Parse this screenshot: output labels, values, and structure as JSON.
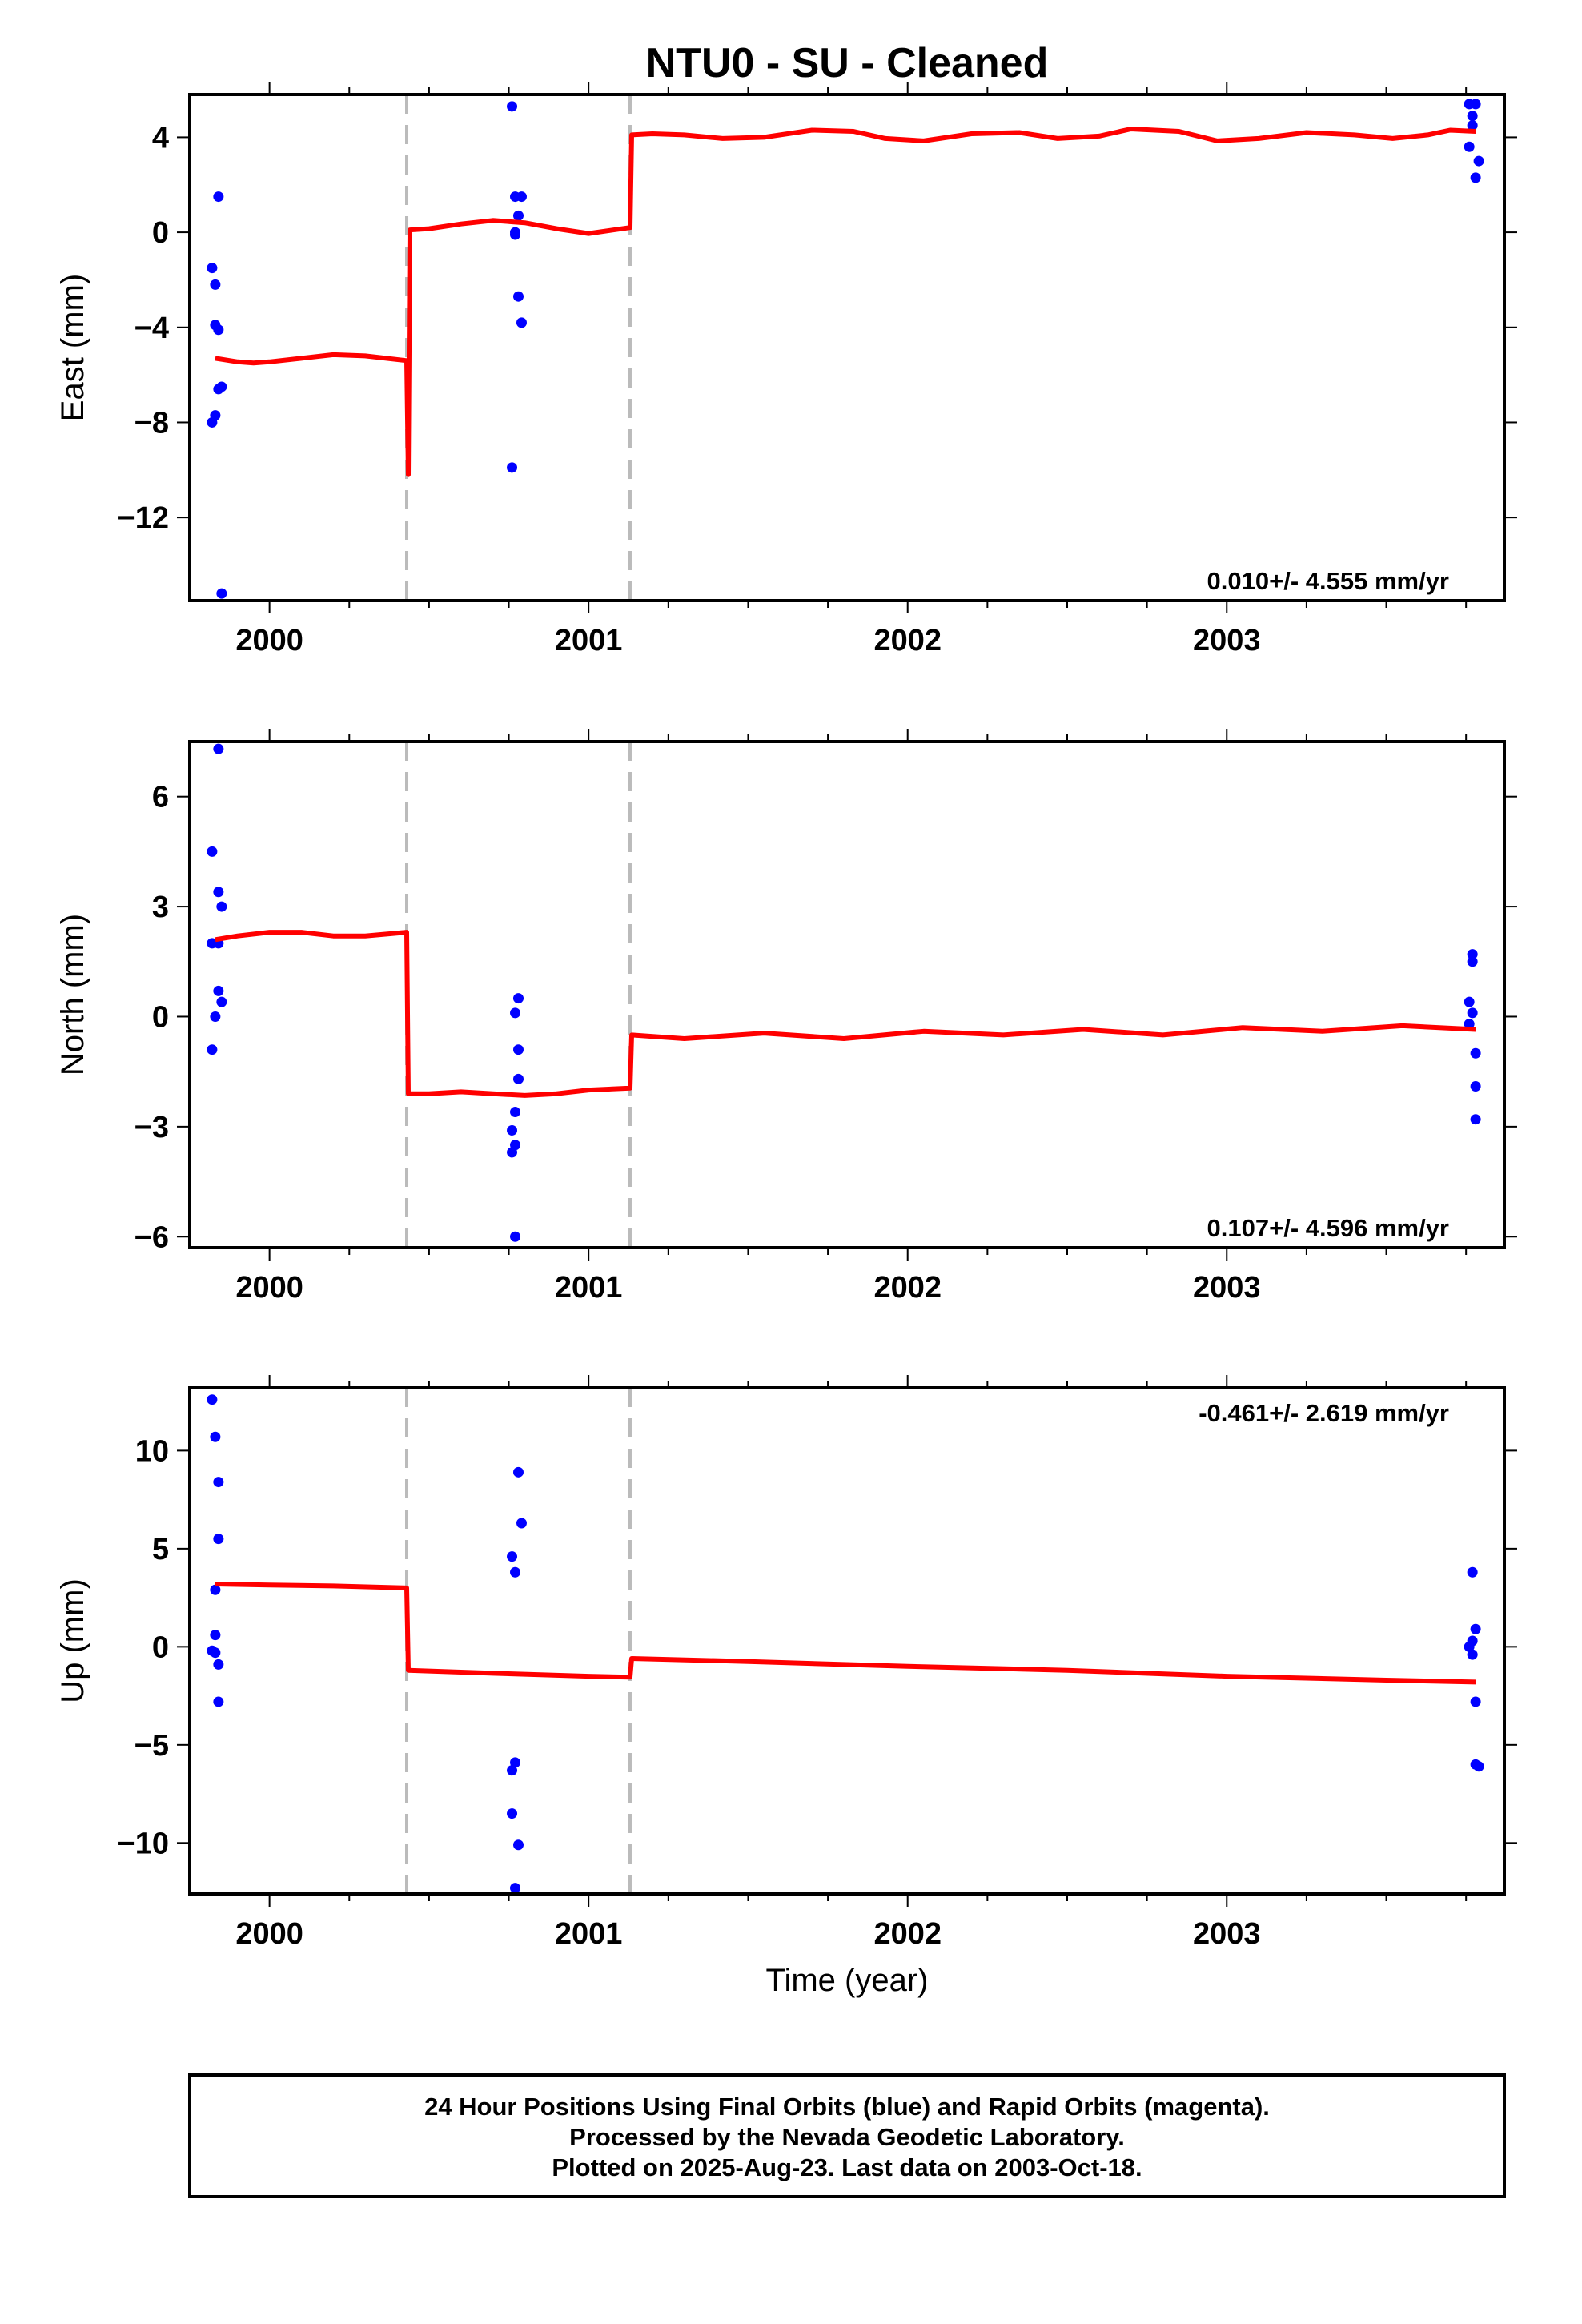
{
  "title": "NTU0  - SU - Cleaned",
  "xlabel": "Time (year)",
  "footer": {
    "lines": [
      "24 Hour Positions Using Final Orbits (blue) and Rapid Orbits (magenta).",
      "Processed by the Nevada Geodetic Laboratory.",
      "Plotted on 2025-Aug-23. Last data on 2003-Oct-18."
    ]
  },
  "colors": {
    "data_points": "#0000ff",
    "model_line": "#ff0000",
    "breaks": "#bbbbbb",
    "axes": "#000000"
  },
  "chart_data": [
    {
      "type": "scatter",
      "name": "East",
      "ylabel": "East (mm)",
      "xlim": [
        1999.75,
        2003.87
      ],
      "ylim": [
        -15.5,
        5.8
      ],
      "x_ticks": [
        2000,
        2001,
        2002,
        2003
      ],
      "y_ticks": [
        4,
        0,
        -4,
        -8,
        -12
      ],
      "y_tick_labels": [
        "4",
        "0",
        "−4",
        "−8",
        "−12"
      ],
      "rate": "0.010+/- 4.555 mm/yr",
      "rate_position": "bottom-right",
      "breaks": [
        2000.43,
        2001.13
      ],
      "points": [
        [
          1999.82,
          -1.5
        ],
        [
          1999.83,
          -2.2
        ],
        [
          1999.83,
          -3.9
        ],
        [
          1999.84,
          -4.1
        ],
        [
          1999.85,
          -6.5
        ],
        [
          1999.84,
          -6.6
        ],
        [
          1999.83,
          -7.7
        ],
        [
          1999.82,
          -8.0
        ],
        [
          1999.84,
          1.5
        ],
        [
          1999.85,
          -15.2
        ],
        [
          2000.76,
          5.3
        ],
        [
          2000.77,
          1.5
        ],
        [
          2000.79,
          1.5
        ],
        [
          2000.77,
          0.0
        ],
        [
          2000.77,
          -0.1
        ],
        [
          2000.78,
          0.7
        ],
        [
          2000.78,
          -2.7
        ],
        [
          2000.79,
          -3.8
        ],
        [
          2000.76,
          -9.9
        ],
        [
          2003.76,
          5.4
        ],
        [
          2003.77,
          4.9
        ],
        [
          2003.78,
          5.4
        ],
        [
          2003.77,
          4.5
        ],
        [
          2003.76,
          3.6
        ],
        [
          2003.79,
          3.0
        ],
        [
          2003.78,
          2.3
        ]
      ],
      "model": [
        [
          1999.83,
          -5.3
        ],
        [
          1999.9,
          -5.45
        ],
        [
          1999.95,
          -5.5
        ],
        [
          2000.0,
          -5.45
        ],
        [
          2000.1,
          -5.3
        ],
        [
          2000.2,
          -5.15
        ],
        [
          2000.3,
          -5.2
        ],
        [
          2000.43,
          -5.4
        ],
        [
          2000.435,
          -10.2
        ],
        [
          2000.44,
          0.1
        ],
        [
          2000.5,
          0.15
        ],
        [
          2000.6,
          0.35
        ],
        [
          2000.7,
          0.5
        ],
        [
          2000.8,
          0.4
        ],
        [
          2000.9,
          0.15
        ],
        [
          2001.0,
          -0.05
        ],
        [
          2001.13,
          0.2
        ],
        [
          2001.135,
          4.1
        ],
        [
          2001.2,
          4.15
        ],
        [
          2001.3,
          4.1
        ],
        [
          2001.42,
          3.95
        ],
        [
          2001.55,
          4.0
        ],
        [
          2001.7,
          4.3
        ],
        [
          2001.83,
          4.25
        ],
        [
          2001.93,
          3.95
        ],
        [
          2002.05,
          3.85
        ],
        [
          2002.2,
          4.15
        ],
        [
          2002.35,
          4.2
        ],
        [
          2002.47,
          3.95
        ],
        [
          2002.6,
          4.05
        ],
        [
          2002.7,
          4.35
        ],
        [
          2002.85,
          4.25
        ],
        [
          2002.97,
          3.85
        ],
        [
          2003.1,
          3.95
        ],
        [
          2003.25,
          4.2
        ],
        [
          2003.4,
          4.1
        ],
        [
          2003.52,
          3.95
        ],
        [
          2003.63,
          4.1
        ],
        [
          2003.7,
          4.3
        ],
        [
          2003.78,
          4.25
        ]
      ]
    },
    {
      "type": "scatter",
      "name": "North",
      "ylabel": "North (mm)",
      "xlim": [
        1999.75,
        2003.87
      ],
      "ylim": [
        -6.3,
        7.5
      ],
      "x_ticks": [
        2000,
        2001,
        2002,
        2003
      ],
      "y_ticks": [
        6,
        3,
        0,
        -3,
        -6
      ],
      "y_tick_labels": [
        "6",
        "3",
        "0",
        "−3",
        "−6"
      ],
      "rate": "0.107+/- 4.596 mm/yr",
      "rate_position": "bottom-right",
      "breaks": [
        2000.43,
        2001.13
      ],
      "points": [
        [
          1999.84,
          7.3
        ],
        [
          1999.82,
          4.5
        ],
        [
          1999.84,
          3.4
        ],
        [
          1999.85,
          3.0
        ],
        [
          1999.82,
          2.0
        ],
        [
          1999.84,
          2.0
        ],
        [
          1999.84,
          0.7
        ],
        [
          1999.85,
          0.4
        ],
        [
          1999.83,
          0.0
        ],
        [
          1999.82,
          -0.9
        ],
        [
          2000.78,
          0.5
        ],
        [
          2000.77,
          0.1
        ],
        [
          2000.78,
          -0.9
        ],
        [
          2000.78,
          -1.7
        ],
        [
          2000.77,
          -2.6
        ],
        [
          2000.76,
          -3.1
        ],
        [
          2000.77,
          -3.5
        ],
        [
          2000.76,
          -3.7
        ],
        [
          2000.77,
          -6.0
        ],
        [
          2003.77,
          1.7
        ],
        [
          2003.77,
          1.5
        ],
        [
          2003.76,
          0.4
        ],
        [
          2003.77,
          0.1
        ],
        [
          2003.76,
          -0.2
        ],
        [
          2003.78,
          -1.0
        ],
        [
          2003.78,
          -1.9
        ],
        [
          2003.78,
          -2.8
        ]
      ],
      "model": [
        [
          1999.83,
          2.1
        ],
        [
          1999.9,
          2.2
        ],
        [
          2000.0,
          2.3
        ],
        [
          2000.1,
          2.3
        ],
        [
          2000.2,
          2.2
        ],
        [
          2000.3,
          2.2
        ],
        [
          2000.43,
          2.3
        ],
        [
          2000.435,
          -2.1
        ],
        [
          2000.5,
          -2.1
        ],
        [
          2000.6,
          -2.05
        ],
        [
          2000.7,
          -2.1
        ],
        [
          2000.8,
          -2.15
        ],
        [
          2000.9,
          -2.1
        ],
        [
          2001.0,
          -2.0
        ],
        [
          2001.13,
          -1.95
        ],
        [
          2001.135,
          -0.5
        ],
        [
          2001.3,
          -0.6
        ],
        [
          2001.55,
          -0.45
        ],
        [
          2001.8,
          -0.6
        ],
        [
          2002.05,
          -0.4
        ],
        [
          2002.3,
          -0.5
        ],
        [
          2002.55,
          -0.35
        ],
        [
          2002.8,
          -0.5
        ],
        [
          2003.05,
          -0.3
        ],
        [
          2003.3,
          -0.4
        ],
        [
          2003.55,
          -0.25
        ],
        [
          2003.78,
          -0.35
        ]
      ]
    },
    {
      "type": "scatter",
      "name": "Up",
      "ylabel": "Up (mm)",
      "xlim": [
        1999.75,
        2003.87
      ],
      "ylim": [
        -12.6,
        13.2
      ],
      "x_ticks": [
        2000,
        2001,
        2002,
        2003
      ],
      "y_ticks": [
        10,
        5,
        0,
        -5,
        -10
      ],
      "y_tick_labels": [
        "10",
        "5",
        "0",
        "−5",
        "−10"
      ],
      "rate": "-0.461+/- 2.619 mm/yr",
      "rate_position": "top-right",
      "breaks": [
        2000.43,
        2001.13
      ],
      "points": [
        [
          1999.82,
          12.6
        ],
        [
          1999.83,
          10.7
        ],
        [
          1999.84,
          8.4
        ],
        [
          1999.84,
          5.5
        ],
        [
          1999.83,
          2.9
        ],
        [
          1999.83,
          0.6
        ],
        [
          1999.82,
          -0.2
        ],
        [
          1999.83,
          -0.3
        ],
        [
          1999.84,
          -0.9
        ],
        [
          1999.84,
          -2.8
        ],
        [
          2000.78,
          8.9
        ],
        [
          2000.79,
          6.3
        ],
        [
          2000.76,
          4.6
        ],
        [
          2000.77,
          3.8
        ],
        [
          2000.77,
          -5.9
        ],
        [
          2000.76,
          -6.3
        ],
        [
          2000.76,
          -8.5
        ],
        [
          2000.78,
          -10.1
        ],
        [
          2000.77,
          -12.3
        ],
        [
          2003.77,
          3.8
        ],
        [
          2003.78,
          0.9
        ],
        [
          2003.77,
          0.3
        ],
        [
          2003.76,
          0.0
        ],
        [
          2003.77,
          -0.4
        ],
        [
          2003.78,
          -2.8
        ],
        [
          2003.78,
          -6.0
        ],
        [
          2003.79,
          -6.1
        ]
      ],
      "model": [
        [
          1999.83,
          3.2
        ],
        [
          2000.0,
          3.15
        ],
        [
          2000.2,
          3.1
        ],
        [
          2000.43,
          3.0
        ],
        [
          2000.435,
          -1.2
        ],
        [
          2000.7,
          -1.35
        ],
        [
          2001.0,
          -1.5
        ],
        [
          2001.13,
          -1.55
        ],
        [
          2001.135,
          -0.6
        ],
        [
          2001.5,
          -0.75
        ],
        [
          2002.0,
          -1.0
        ],
        [
          2002.5,
          -1.2
        ],
        [
          2003.0,
          -1.5
        ],
        [
          2003.5,
          -1.7
        ],
        [
          2003.78,
          -1.8
        ]
      ]
    }
  ]
}
